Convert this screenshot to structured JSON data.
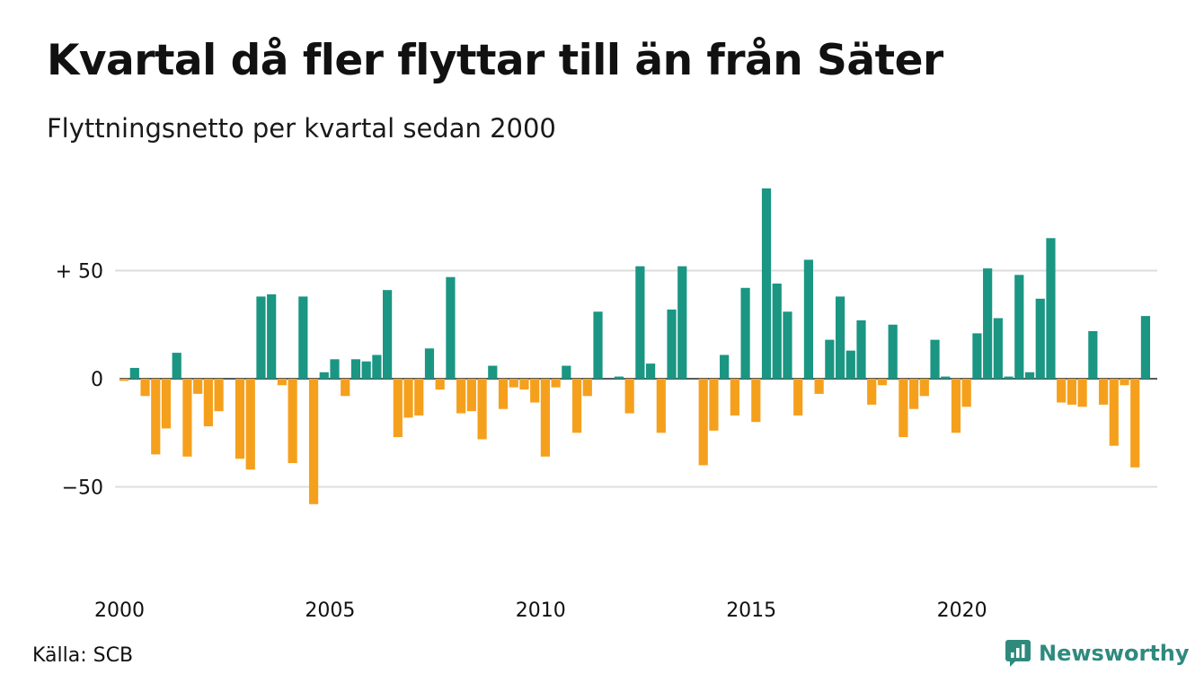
{
  "title": "Kvartal då fler flyttar till än från Säter",
  "subtitle": "Flyttningsnetto per kvartal sedan 2000",
  "source": "Källa: SCB",
  "brand": {
    "name": "Newsworthy",
    "icon": "newsworthy-logo-icon"
  },
  "colors": {
    "positive": "#1a9683",
    "negative": "#f5a01d",
    "grid": "#dddddd",
    "brand": "#2f8a7e"
  },
  "chart_data": {
    "type": "bar",
    "x_start_year": 2000,
    "periods_per_year": 4,
    "ylim": [
      -90,
      90
    ],
    "yticks": [
      {
        "value": 50,
        "label": "+ 50"
      },
      {
        "value": 0,
        "label": "0"
      },
      {
        "value": -50,
        "label": "−50"
      }
    ],
    "xticks": [
      "2000",
      "2005",
      "2010",
      "2015",
      "2020"
    ],
    "grid": true,
    "values": [
      -1,
      5,
      -8,
      -35,
      -23,
      12,
      -36,
      -7,
      -22,
      -15,
      0,
      -37,
      -42,
      38,
      39,
      -3,
      -39,
      38,
      -58,
      3,
      9,
      -8,
      9,
      8,
      11,
      41,
      -27,
      -18,
      -17,
      14,
      -5,
      47,
      -16,
      -15,
      -28,
      6,
      -14,
      -4,
      -5,
      -11,
      -36,
      -4,
      6,
      -25,
      -8,
      31,
      0,
      1,
      -16,
      52,
      7,
      -25,
      32,
      52,
      0,
      -40,
      -24,
      11,
      -17,
      42,
      -20,
      88,
      44,
      31,
      -17,
      55,
      -7,
      18,
      38,
      13,
      27,
      -12,
      -3,
      25,
      -27,
      -14,
      -8,
      18,
      1,
      -25,
      -13,
      21,
      51,
      28,
      1,
      48,
      3,
      37,
      65,
      -11,
      -12,
      -13,
      22,
      -12,
      -31,
      -3,
      -41,
      29
    ]
  }
}
